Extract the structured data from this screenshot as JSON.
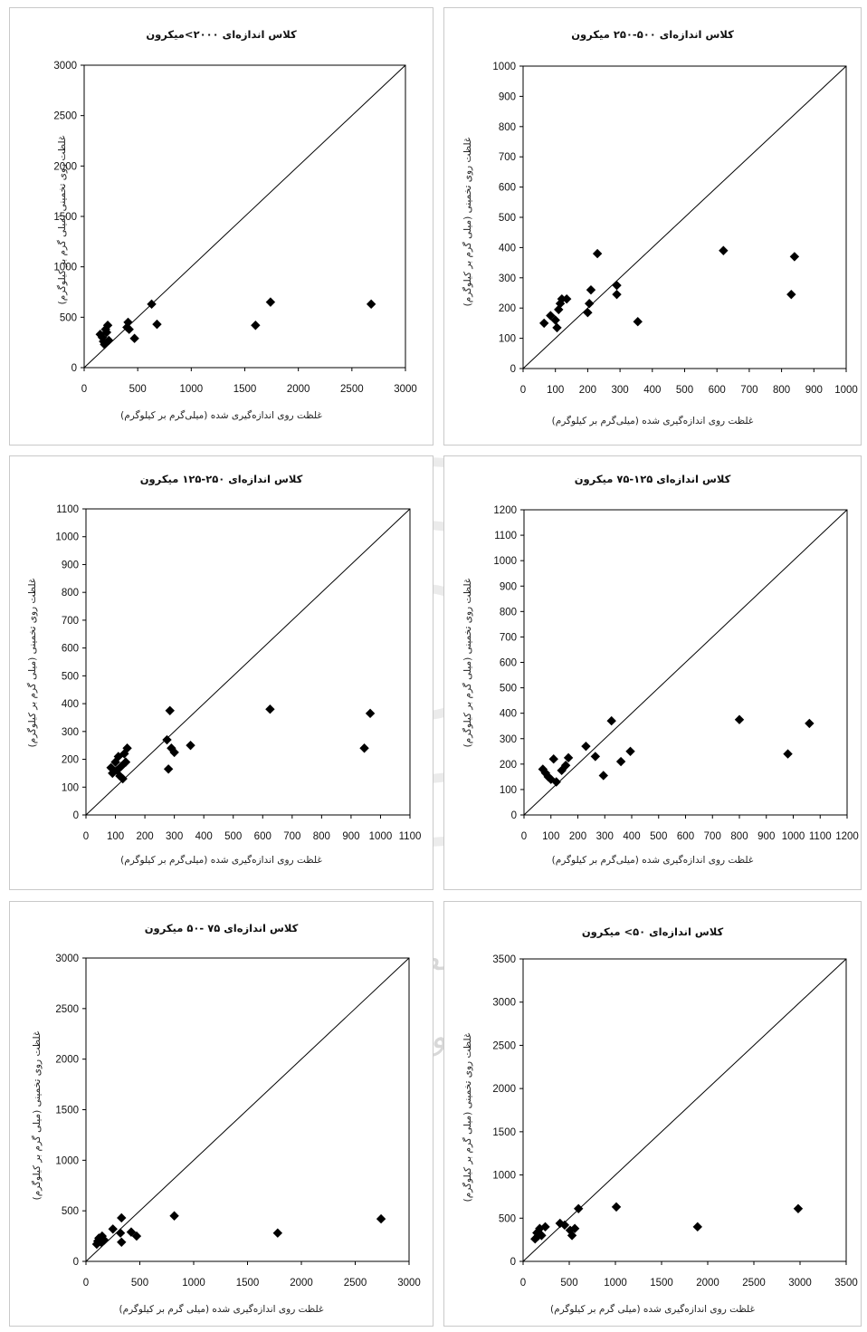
{
  "watermark": {
    "line1": "پژوهشگاه علوم انسانی و مطالعات فرهنگی",
    "line2": "پرتال جامع علوم انسانی"
  },
  "chart_data": [
    {
      "type": "scatter",
      "title": "کلاس اندازه‌ای ۲۰۰۰>میکرون",
      "xlabel": "غلظت روی اندازه‌گیری شده (میلی‌گرم بر کیلوگرم)",
      "ylabel": "غلظت روی تخمینی (میلی گرم بر کیلوگرم)",
      "xlim": [
        0,
        3000
      ],
      "ylim": [
        0,
        3000
      ],
      "xticks": [
        0,
        500,
        1000,
        1500,
        2000,
        2500,
        3000
      ],
      "yticks": [
        0,
        500,
        1000,
        1500,
        2000,
        2500,
        3000
      ],
      "reference_line": "y = x",
      "points": [
        [
          150,
          330
        ],
        [
          170,
          300
        ],
        [
          180,
          260
        ],
        [
          190,
          230
        ],
        [
          200,
          380
        ],
        [
          210,
          350
        ],
        [
          220,
          420
        ],
        [
          230,
          270
        ],
        [
          400,
          400
        ],
        [
          410,
          450
        ],
        [
          420,
          380
        ],
        [
          470,
          290
        ],
        [
          630,
          630
        ],
        [
          680,
          430
        ],
        [
          1600,
          420
        ],
        [
          1740,
          650
        ],
        [
          2680,
          630
        ]
      ]
    },
    {
      "type": "scatter",
      "title": "کلاس اندازه‌ای ۵۰۰-۲۵۰ میکرون",
      "xlabel": "غلظت روی اندازه‌گیری شده (میلی‌گرم بر کیلوگرم)",
      "ylabel": "غلظت روی تخمینی (میلی گرم بر کیلوگرم)",
      "xlim": [
        0,
        1000
      ],
      "ylim": [
        0,
        1000
      ],
      "xticks": [
        0,
        100,
        200,
        300,
        400,
        500,
        600,
        700,
        800,
        900,
        1000
      ],
      "yticks": [
        0,
        100,
        200,
        300,
        400,
        500,
        600,
        700,
        800,
        900,
        1000
      ],
      "reference_line": "y = x",
      "points": [
        [
          65,
          150
        ],
        [
          85,
          175
        ],
        [
          100,
          160
        ],
        [
          105,
          135
        ],
        [
          110,
          195
        ],
        [
          115,
          215
        ],
        [
          120,
          230
        ],
        [
          135,
          230
        ],
        [
          200,
          185
        ],
        [
          205,
          215
        ],
        [
          210,
          260
        ],
        [
          230,
          380
        ],
        [
          290,
          245
        ],
        [
          290,
          275
        ],
        [
          355,
          155
        ],
        [
          620,
          390
        ],
        [
          830,
          245
        ],
        [
          840,
          370
        ]
      ]
    },
    {
      "type": "scatter",
      "title": "کلاس اندازه‌ای ۲۵۰-۱۲۵ میکرون",
      "xlabel": "غلظت روی اندازه‌گیری شده (میلی‌گرم بر کیلوگرم)",
      "ylabel": "غلظت روی تخمینی (میلی گرم بر کیلوگرم)",
      "xlim": [
        0,
        1100
      ],
      "ylim": [
        0,
        1100
      ],
      "xticks": [
        0,
        100,
        200,
        300,
        400,
        500,
        600,
        700,
        800,
        900,
        1000,
        1100
      ],
      "yticks": [
        0,
        100,
        200,
        300,
        400,
        500,
        600,
        700,
        800,
        900,
        1000,
        1100
      ],
      "reference_line": "y = x",
      "points": [
        [
          85,
          170
        ],
        [
          90,
          150
        ],
        [
          100,
          190
        ],
        [
          105,
          160
        ],
        [
          110,
          210
        ],
        [
          115,
          140
        ],
        [
          120,
          175
        ],
        [
          125,
          130
        ],
        [
          130,
          220
        ],
        [
          135,
          190
        ],
        [
          140,
          240
        ],
        [
          275,
          270
        ],
        [
          280,
          165
        ],
        [
          285,
          375
        ],
        [
          290,
          240
        ],
        [
          300,
          225
        ],
        [
          355,
          250
        ],
        [
          625,
          380
        ],
        [
          945,
          240
        ],
        [
          965,
          365
        ]
      ]
    },
    {
      "type": "scatter",
      "title": "کلاس اندازه‌ای ۱۲۵-۷۵ میکرون",
      "xlabel": "غلظت روی اندازه‌گیری شده (میلی‌گرم بر کیلوگرم)",
      "ylabel": "غلظت روی تخمینی (میلی گرم بر کیلوگرم)",
      "xlim": [
        0,
        1200
      ],
      "ylim": [
        0,
        1200
      ],
      "xticks": [
        0,
        100,
        200,
        300,
        400,
        500,
        600,
        700,
        800,
        900,
        1000,
        1100,
        1200
      ],
      "yticks": [
        0,
        100,
        200,
        300,
        400,
        500,
        600,
        700,
        800,
        900,
        1000,
        1100,
        1200
      ],
      "reference_line": "y = x",
      "points": [
        [
          70,
          180
        ],
        [
          80,
          165
        ],
        [
          90,
          150
        ],
        [
          100,
          140
        ],
        [
          110,
          220
        ],
        [
          120,
          130
        ],
        [
          140,
          175
        ],
        [
          155,
          195
        ],
        [
          165,
          225
        ],
        [
          230,
          270
        ],
        [
          265,
          230
        ],
        [
          295,
          155
        ],
        [
          325,
          370
        ],
        [
          360,
          210
        ],
        [
          395,
          250
        ],
        [
          800,
          375
        ],
        [
          980,
          240
        ],
        [
          1060,
          360
        ]
      ]
    },
    {
      "type": "scatter",
      "title": "کلاس اندازه‌ای ۷۵ -۵۰ میکرون",
      "xlabel": "غلظت روی اندازه‌گیری شده (میلی گرم بر کیلوگرم)",
      "ylabel": "غلظت روی تخمینی (میلی گرم بر کیلوگرم)",
      "xlim": [
        0,
        3000
      ],
      "ylim": [
        0,
        3000
      ],
      "xticks": [
        0,
        500,
        1000,
        1500,
        2000,
        2500,
        3000
      ],
      "yticks": [
        0,
        500,
        1000,
        1500,
        2000,
        2500,
        3000
      ],
      "reference_line": "y = x",
      "points": [
        [
          100,
          170
        ],
        [
          110,
          200
        ],
        [
          120,
          230
        ],
        [
          140,
          190
        ],
        [
          150,
          250
        ],
        [
          170,
          210
        ],
        [
          250,
          320
        ],
        [
          320,
          280
        ],
        [
          330,
          190
        ],
        [
          330,
          430
        ],
        [
          420,
          290
        ],
        [
          470,
          250
        ],
        [
          820,
          450
        ],
        [
          1780,
          280
        ],
        [
          2740,
          420
        ]
      ]
    },
    {
      "type": "scatter",
      "title": "کلاس اندازه‌ای ۵۰> میکرون",
      "xlabel": "غلظت روی اندازه‌گیری شده (میلی گرم بر کیلوگرم)",
      "ylabel": "غلظت روی تخمینی (میلی گرم بر کیلوگرم)",
      "xlim": [
        0,
        3500
      ],
      "ylim": [
        0,
        3500
      ],
      "xticks": [
        0,
        500,
        1000,
        1500,
        2000,
        2500,
        3000,
        3500
      ],
      "yticks": [
        0,
        500,
        1000,
        1500,
        2000,
        2500,
        3000,
        3500
      ],
      "reference_line": "y = x",
      "points": [
        [
          130,
          260
        ],
        [
          150,
          330
        ],
        [
          160,
          290
        ],
        [
          180,
          380
        ],
        [
          200,
          300
        ],
        [
          240,
          400
        ],
        [
          400,
          440
        ],
        [
          450,
          420
        ],
        [
          510,
          360
        ],
        [
          530,
          300
        ],
        [
          560,
          380
        ],
        [
          600,
          610
        ],
        [
          1010,
          630
        ],
        [
          1890,
          400
        ],
        [
          2980,
          610
        ]
      ]
    }
  ]
}
